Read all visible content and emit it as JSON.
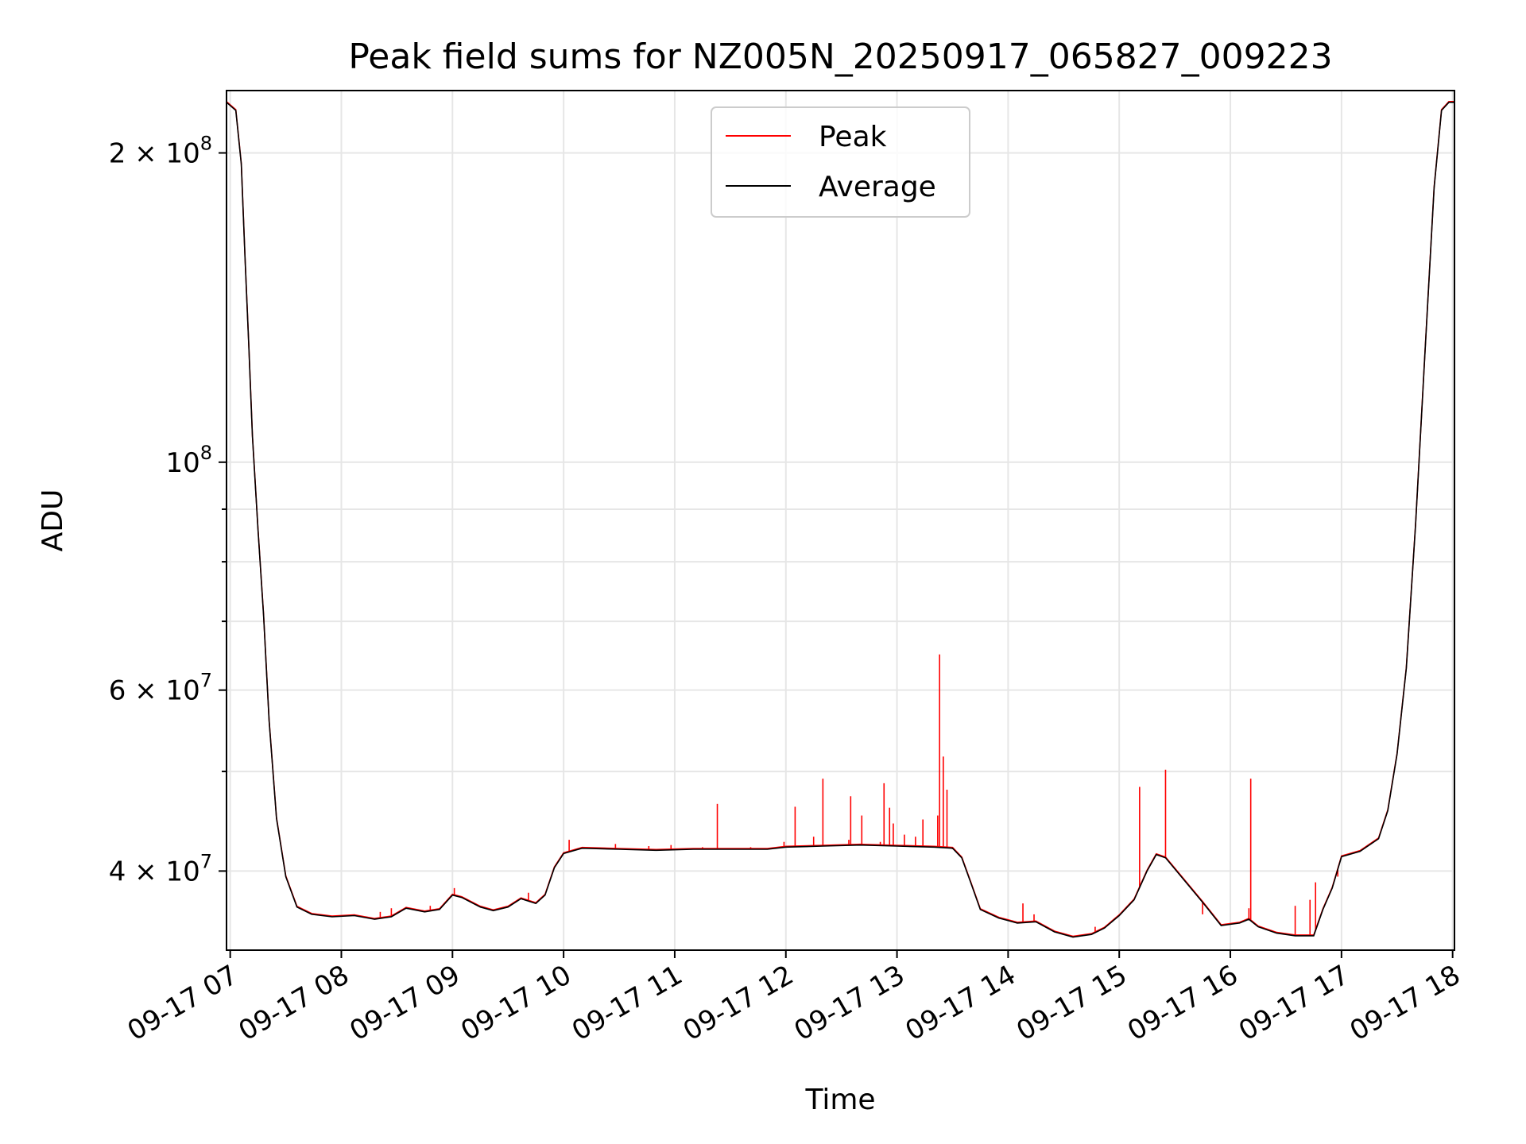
{
  "chart_data": {
    "type": "line",
    "title": "Peak field sums for NZ005N_20250917_065827_009223",
    "xlabel": "Time",
    "ylabel": "ADU",
    "yscale": "log",
    "ylim": [
      33500000,
      230000000
    ],
    "xlim": [
      "2025-09-17 06:58",
      "2025-09-17 18:01"
    ],
    "grid": true,
    "legend": {
      "placement": "top-center",
      "entries": [
        "Peak",
        "Average"
      ]
    },
    "x_ticks": [
      {
        "t": "2025-09-17 07:00",
        "label": "09-17 07"
      },
      {
        "t": "2025-09-17 08:00",
        "label": "09-17 08"
      },
      {
        "t": "2025-09-17 09:00",
        "label": "09-17 09"
      },
      {
        "t": "2025-09-17 10:00",
        "label": "09-17 10"
      },
      {
        "t": "2025-09-17 11:00",
        "label": "09-17 11"
      },
      {
        "t": "2025-09-17 12:00",
        "label": "09-17 12"
      },
      {
        "t": "2025-09-17 13:00",
        "label": "09-17 13"
      },
      {
        "t": "2025-09-17 14:00",
        "label": "09-17 14"
      },
      {
        "t": "2025-09-17 15:00",
        "label": "09-17 15"
      },
      {
        "t": "2025-09-17 16:00",
        "label": "09-17 16"
      },
      {
        "t": "2025-09-17 17:00",
        "label": "09-17 17"
      },
      {
        "t": "2025-09-17 18:00",
        "label": "09-17 18"
      }
    ],
    "y_ticks_major": [
      {
        "value": 40000000,
        "base": "4 × 10",
        "exp": "7"
      },
      {
        "value": 60000000,
        "base": "6 × 10",
        "exp": "7"
      },
      {
        "value": 100000000,
        "base": "10",
        "exp": "8"
      },
      {
        "value": 200000000,
        "base": "2 × 10",
        "exp": "8"
      }
    ],
    "y_ticks_minor": [
      50000000,
      70000000,
      80000000,
      90000000
    ],
    "series": [
      {
        "name": "Peak",
        "color": "#ff0000",
        "points": [
          [
            "2025-09-17 08:21",
            36500000
          ],
          [
            "2025-09-17 08:27",
            36800000
          ],
          [
            "2025-09-17 08:35",
            36900000
          ],
          [
            "2025-09-17 08:42",
            36600000
          ],
          [
            "2025-09-17 08:48",
            37000000
          ],
          [
            "2025-09-17 09:01",
            38500000
          ],
          [
            "2025-09-17 09:24",
            36700000
          ],
          [
            "2025-09-17 09:38",
            37500000
          ],
          [
            "2025-09-17 09:41",
            38100000
          ],
          [
            "2025-09-17 10:03",
            42900000
          ],
          [
            "2025-09-17 10:28",
            42500000
          ],
          [
            "2025-09-17 10:46",
            42300000
          ],
          [
            "2025-09-17 10:58",
            42400000
          ],
          [
            "2025-09-17 11:15",
            42200000
          ],
          [
            "2025-09-17 11:23",
            46500000
          ],
          [
            "2025-09-17 11:29",
            42100000
          ],
          [
            "2025-09-17 11:41",
            42200000
          ],
          [
            "2025-09-17 11:59",
            42700000
          ],
          [
            "2025-09-17 12:05",
            46200000
          ],
          [
            "2025-09-17 12:15",
            43200000
          ],
          [
            "2025-09-17 12:20",
            49200000
          ],
          [
            "2025-09-17 12:34",
            42900000
          ],
          [
            "2025-09-17 12:35",
            47300000
          ],
          [
            "2025-09-17 12:41",
            45300000
          ],
          [
            "2025-09-17 12:51",
            42700000
          ],
          [
            "2025-09-17 12:53",
            48700000
          ],
          [
            "2025-09-17 12:56",
            46100000
          ],
          [
            "2025-09-17 12:58",
            44500000
          ],
          [
            "2025-09-17 13:04",
            43400000
          ],
          [
            "2025-09-17 13:10",
            43200000
          ],
          [
            "2025-09-17 13:14",
            44900000
          ],
          [
            "2025-09-17 13:22",
            45300000
          ],
          [
            "2025-09-17 13:23",
            65000000
          ],
          [
            "2025-09-17 13:25",
            51700000
          ],
          [
            "2025-09-17 13:27",
            48000000
          ],
          [
            "2025-09-17 13:30",
            42000000
          ],
          [
            "2025-09-17 13:52",
            36200000
          ],
          [
            "2025-09-17 14:08",
            37200000
          ],
          [
            "2025-09-17 14:14",
            36300000
          ],
          [
            "2025-09-17 14:47",
            35300000
          ],
          [
            "2025-09-17 15:11",
            48300000
          ],
          [
            "2025-09-17 15:25",
            50200000
          ],
          [
            "2025-09-17 15:45",
            36300000
          ],
          [
            "2025-09-17 16:10",
            36800000
          ],
          [
            "2025-09-17 16:11",
            49200000
          ],
          [
            "2025-09-17 16:35",
            37000000
          ],
          [
            "2025-09-17 16:43",
            37500000
          ],
          [
            "2025-09-17 16:46",
            39000000
          ],
          [
            "2025-09-17 16:58",
            39500000
          ]
        ]
      },
      {
        "name": "Average",
        "color": "#000000",
        "points": [
          [
            "2025-09-17 06:58",
            224000000
          ],
          [
            "2025-09-17 07:03",
            220000000
          ],
          [
            "2025-09-17 07:06",
            195000000
          ],
          [
            "2025-09-17 07:08",
            158000000
          ],
          [
            "2025-09-17 07:10",
            130000000
          ],
          [
            "2025-09-17 07:12",
            106000000
          ],
          [
            "2025-09-17 07:15",
            86000000
          ],
          [
            "2025-09-17 07:18",
            71000000
          ],
          [
            "2025-09-17 07:21",
            56000000
          ],
          [
            "2025-09-17 07:25",
            45000000
          ],
          [
            "2025-09-17 07:30",
            39500000
          ],
          [
            "2025-09-17 07:36",
            36900000
          ],
          [
            "2025-09-17 07:44",
            36300000
          ],
          [
            "2025-09-17 07:55",
            36100000
          ],
          [
            "2025-09-17 08:07",
            36200000
          ],
          [
            "2025-09-17 08:18",
            35900000
          ],
          [
            "2025-09-17 08:27",
            36100000
          ],
          [
            "2025-09-17 08:35",
            36800000
          ],
          [
            "2025-09-17 08:45",
            36500000
          ],
          [
            "2025-09-17 08:53",
            36700000
          ],
          [
            "2025-09-17 09:00",
            37900000
          ],
          [
            "2025-09-17 09:05",
            37700000
          ],
          [
            "2025-09-17 09:15",
            36900000
          ],
          [
            "2025-09-17 09:22",
            36600000
          ],
          [
            "2025-09-17 09:30",
            36900000
          ],
          [
            "2025-09-17 09:37",
            37600000
          ],
          [
            "2025-09-17 09:45",
            37200000
          ],
          [
            "2025-09-17 09:50",
            37900000
          ],
          [
            "2025-09-17 09:55",
            40300000
          ],
          [
            "2025-09-17 10:00",
            41600000
          ],
          [
            "2025-09-17 10:10",
            42100000
          ],
          [
            "2025-09-17 10:30",
            42000000
          ],
          [
            "2025-09-17 10:50",
            41900000
          ],
          [
            "2025-09-17 11:10",
            42000000
          ],
          [
            "2025-09-17 11:30",
            42000000
          ],
          [
            "2025-09-17 11:50",
            42000000
          ],
          [
            "2025-09-17 12:00",
            42200000
          ],
          [
            "2025-09-17 12:20",
            42300000
          ],
          [
            "2025-09-17 12:40",
            42400000
          ],
          [
            "2025-09-17 13:00",
            42300000
          ],
          [
            "2025-09-17 13:20",
            42200000
          ],
          [
            "2025-09-17 13:30",
            42100000
          ],
          [
            "2025-09-17 13:35",
            41200000
          ],
          [
            "2025-09-17 13:40",
            38900000
          ],
          [
            "2025-09-17 13:45",
            36700000
          ],
          [
            "2025-09-17 13:55",
            36000000
          ],
          [
            "2025-09-17 14:05",
            35600000
          ],
          [
            "2025-09-17 14:15",
            35700000
          ],
          [
            "2025-09-17 14:25",
            34900000
          ],
          [
            "2025-09-17 14:35",
            34500000
          ],
          [
            "2025-09-17 14:45",
            34700000
          ],
          [
            "2025-09-17 14:52",
            35200000
          ],
          [
            "2025-09-17 15:00",
            36200000
          ],
          [
            "2025-09-17 15:08",
            37500000
          ],
          [
            "2025-09-17 15:15",
            40000000
          ],
          [
            "2025-09-17 15:20",
            41500000
          ],
          [
            "2025-09-17 15:25",
            41200000
          ],
          [
            "2025-09-17 15:35",
            39200000
          ],
          [
            "2025-09-17 15:45",
            37300000
          ],
          [
            "2025-09-17 15:55",
            35400000
          ],
          [
            "2025-09-17 16:05",
            35600000
          ],
          [
            "2025-09-17 16:10",
            35900000
          ],
          [
            "2025-09-17 16:15",
            35300000
          ],
          [
            "2025-09-17 16:25",
            34800000
          ],
          [
            "2025-09-17 16:35",
            34600000
          ],
          [
            "2025-09-17 16:45",
            34600000
          ],
          [
            "2025-09-17 16:50",
            36700000
          ],
          [
            "2025-09-17 16:55",
            38500000
          ],
          [
            "2025-09-17 17:00",
            41300000
          ],
          [
            "2025-09-17 17:10",
            41800000
          ],
          [
            "2025-09-17 17:20",
            43000000
          ],
          [
            "2025-09-17 17:25",
            45800000
          ],
          [
            "2025-09-17 17:30",
            52000000
          ],
          [
            "2025-09-17 17:35",
            63000000
          ],
          [
            "2025-09-17 17:40",
            87000000
          ],
          [
            "2025-09-17 17:45",
            127000000
          ],
          [
            "2025-09-17 17:50",
            185000000
          ],
          [
            "2025-09-17 17:54",
            220000000
          ],
          [
            "2025-09-17 17:58",
            224000000
          ],
          [
            "2025-09-17 18:01",
            224000000
          ]
        ]
      }
    ]
  }
}
